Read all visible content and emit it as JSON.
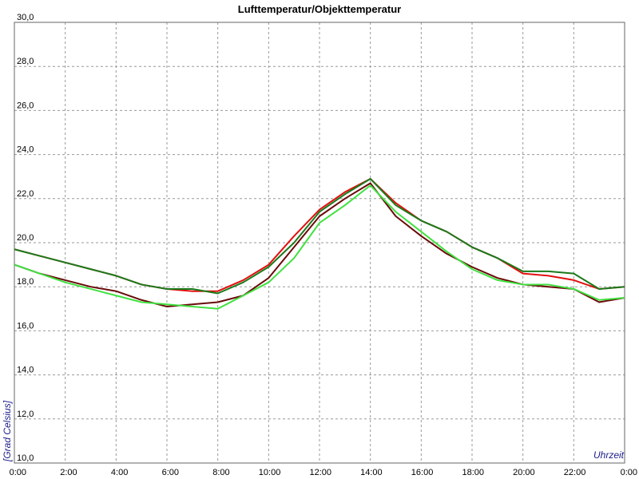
{
  "chart_data": {
    "type": "line",
    "title": "Lufttemperatur/Objekttemperatur",
    "x_label": "Uhrzeit",
    "y_label": "[Grad Celsius]",
    "x": [
      0,
      1,
      2,
      3,
      4,
      5,
      6,
      7,
      8,
      9,
      10,
      11,
      12,
      13,
      14,
      15,
      16,
      17,
      18,
      19,
      20,
      21,
      22,
      23,
      24
    ],
    "series": [
      {
        "color": "#e01010",
        "values": [
          19.7,
          19.4,
          19.1,
          18.8,
          18.5,
          18.1,
          17.9,
          17.8,
          17.8,
          18.3,
          19.0,
          20.3,
          21.5,
          22.3,
          22.9,
          21.8,
          21.0,
          20.5,
          19.8,
          19.3,
          18.6,
          18.5,
          18.3,
          17.9,
          18.0
        ]
      },
      {
        "color": "#1a7a1a",
        "values": [
          19.7,
          19.4,
          19.1,
          18.8,
          18.5,
          18.1,
          17.9,
          17.9,
          17.7,
          18.2,
          18.9,
          20.0,
          21.4,
          22.2,
          22.9,
          21.7,
          21.0,
          20.5,
          19.8,
          19.3,
          18.7,
          18.7,
          18.6,
          17.9,
          18.0
        ]
      },
      {
        "color": "#6a0a0a",
        "values": [
          19.0,
          18.6,
          18.3,
          18.0,
          17.8,
          17.4,
          17.1,
          17.2,
          17.3,
          17.6,
          18.4,
          19.8,
          21.2,
          22.0,
          22.7,
          21.2,
          20.3,
          19.5,
          18.9,
          18.4,
          18.1,
          18.0,
          17.9,
          17.3,
          17.5
        ]
      },
      {
        "color": "#40e040",
        "values": [
          19.0,
          18.6,
          18.2,
          17.9,
          17.6,
          17.3,
          17.2,
          17.1,
          17.0,
          17.6,
          18.2,
          19.3,
          20.9,
          21.7,
          22.6,
          21.4,
          20.5,
          19.6,
          18.8,
          18.3,
          18.1,
          18.1,
          17.9,
          17.4,
          17.5
        ]
      }
    ],
    "xlim": [
      0,
      24
    ],
    "xticks": [
      {
        "value": 0,
        "label": "0:00"
      },
      {
        "value": 2,
        "label": "2:00"
      },
      {
        "value": 4,
        "label": "4:00"
      },
      {
        "value": 6,
        "label": "6:00"
      },
      {
        "value": 8,
        "label": "8:00"
      },
      {
        "value": 10,
        "label": "10:00"
      },
      {
        "value": 12,
        "label": "12:00"
      },
      {
        "value": 14,
        "label": "14:00"
      },
      {
        "value": 16,
        "label": "16:00"
      },
      {
        "value": 18,
        "label": "18:00"
      },
      {
        "value": 20,
        "label": "20:00"
      },
      {
        "value": 22,
        "label": "22:00"
      },
      {
        "value": 24,
        "label": "0:00"
      }
    ],
    "ylim": [
      10,
      30
    ],
    "yticks": [
      {
        "value": 10,
        "label": "10,0"
      },
      {
        "value": 12,
        "label": "12,0"
      },
      {
        "value": 14,
        "label": "14,0"
      },
      {
        "value": 16,
        "label": "16,0"
      },
      {
        "value": 18,
        "label": "18,0"
      },
      {
        "value": 20,
        "label": "20,0"
      },
      {
        "value": 22,
        "label": "22,0"
      },
      {
        "value": 24,
        "label": "24,0"
      },
      {
        "value": 26,
        "label": "26,0"
      },
      {
        "value": 28,
        "label": "28,0"
      },
      {
        "value": 30,
        "label": "30,0"
      }
    ],
    "grid": true
  }
}
